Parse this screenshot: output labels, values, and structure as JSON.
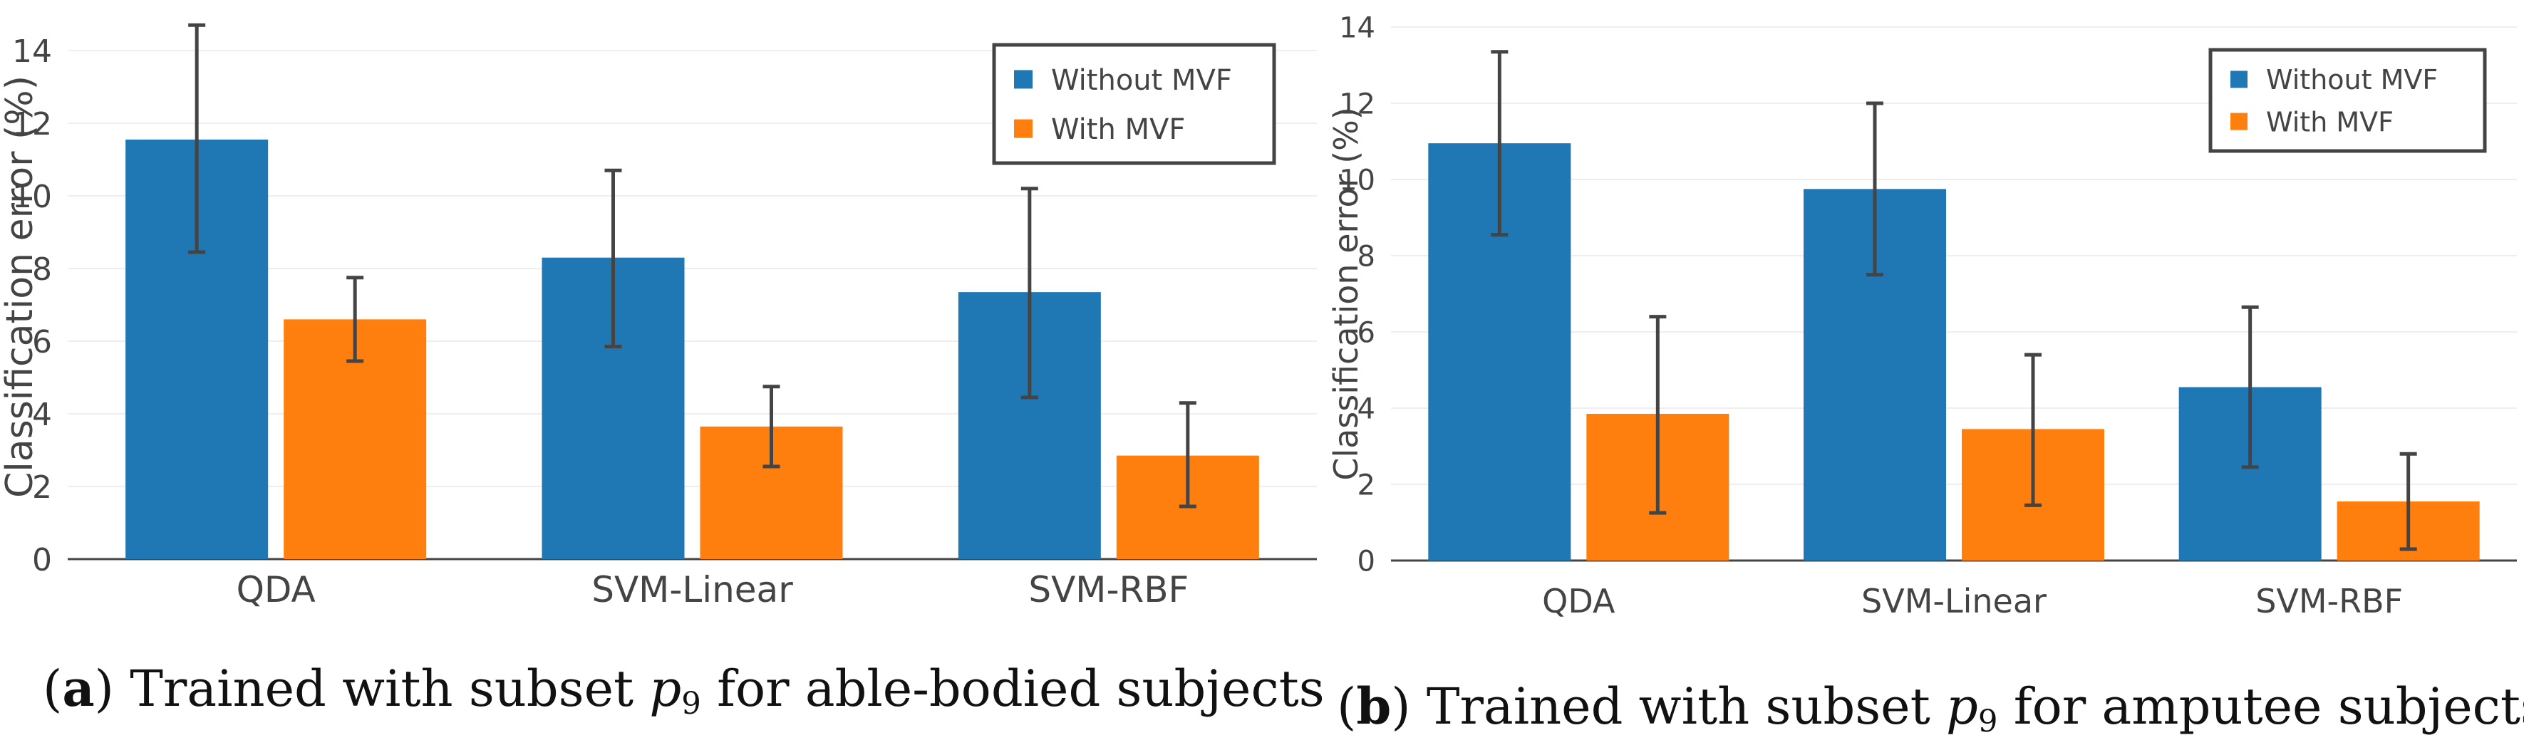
{
  "chart_data": [
    {
      "type": "bar",
      "id": "a",
      "categories": [
        "QDA",
        "SVM-Linear",
        "SVM-RBF"
      ],
      "series": [
        {
          "name": "Without MVF",
          "color": "#1f77b4",
          "values": [
            11.55,
            8.3,
            7.35
          ],
          "err_low": [
            8.45,
            5.85,
            4.45
          ],
          "err_high": [
            14.7,
            10.7,
            10.2
          ]
        },
        {
          "name": "With MVF",
          "color": "#ff7f0e",
          "values": [
            6.6,
            3.65,
            2.85
          ],
          "err_low": [
            5.45,
            2.55,
            1.45
          ],
          "err_high": [
            7.75,
            4.75,
            4.3
          ]
        }
      ],
      "ylabel": "Classification error (%)",
      "xlabel": "",
      "ylim": [
        0,
        15
      ],
      "yticks": [
        0,
        2,
        4,
        6,
        8,
        10,
        12,
        14
      ],
      "legend_position": "top-right",
      "grid": true,
      "caption": {
        "label": "a",
        "text_before": "Trained with subset",
        "symbol": "p",
        "subscript": "9",
        "text_after": "for able-bodied subjects"
      }
    },
    {
      "type": "bar",
      "id": "b",
      "categories": [
        "QDA",
        "SVM-Linear",
        "SVM-RBF"
      ],
      "series": [
        {
          "name": "Without MVF",
          "color": "#1f77b4",
          "values": [
            10.95,
            9.75,
            4.55
          ],
          "err_low": [
            8.55,
            7.5,
            2.45
          ],
          "err_high": [
            13.35,
            12.0,
            6.65
          ]
        },
        {
          "name": "With MVF",
          "color": "#ff7f0e",
          "values": [
            3.85,
            3.45,
            1.55
          ],
          "err_low": [
            1.25,
            1.45,
            0.3
          ],
          "err_high": [
            6.4,
            5.4,
            2.8
          ]
        }
      ],
      "ylabel": "Classification error (%)",
      "xlabel": "",
      "ylim": [
        0,
        14
      ],
      "yticks": [
        0,
        2,
        4,
        6,
        8,
        10,
        12,
        14
      ],
      "legend_position": "top-right",
      "grid": true,
      "caption": {
        "label": "b",
        "text_before": "Trained with subset",
        "symbol": "p",
        "subscript": "9",
        "text_after": "for amputee subjects"
      }
    }
  ]
}
